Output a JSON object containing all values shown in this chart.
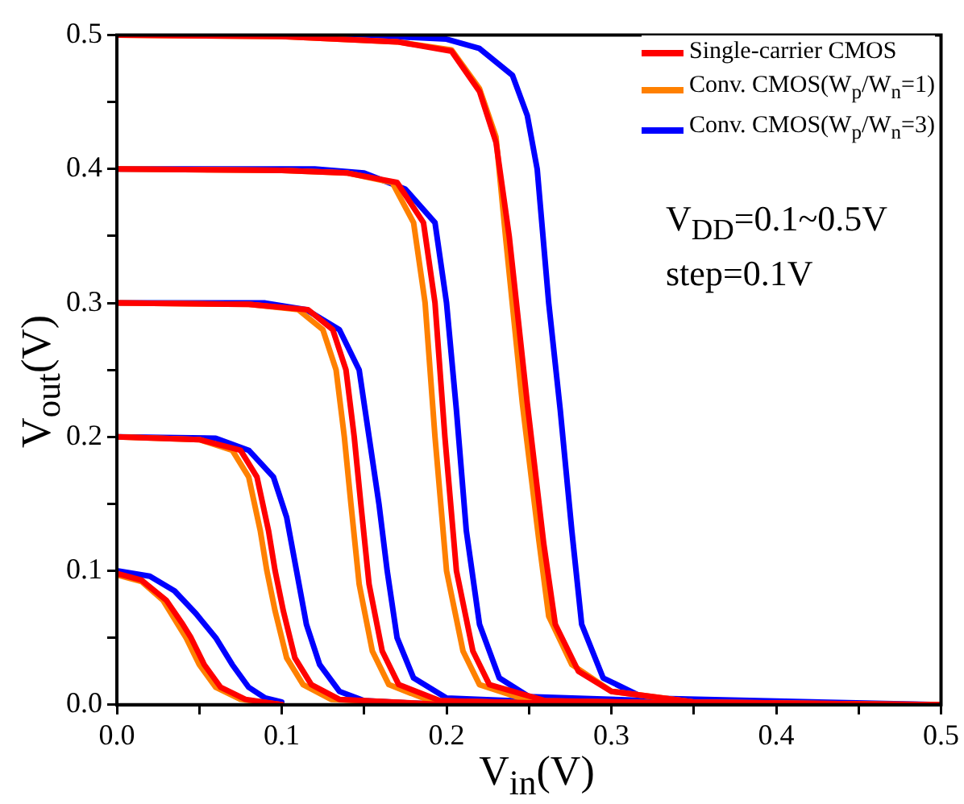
{
  "chart_data": {
    "type": "line",
    "xlabel": "V$_{in}$(V)",
    "ylabel": "V$_{out}$(V)",
    "xlim": [
      0,
      0.5
    ],
    "ylim": [
      0,
      0.5
    ],
    "xticks": [
      {
        "value": 0,
        "label": "0.0"
      },
      {
        "value": 0.05,
        "label": null
      },
      0.1,
      {
        "value": 0.15,
        "label": null
      },
      0.2,
      {
        "value": 0.25,
        "label": null
      },
      0.3,
      {
        "value": 0.35,
        "label": null
      },
      0.4,
      {
        "value": 0.45,
        "label": null
      },
      0.5
    ],
    "yticks": [
      {
        "value": 0,
        "label": "0.0"
      },
      {
        "value": 0.05,
        "label": null
      },
      0.1,
      {
        "value": 0.15,
        "label": null
      },
      0.2,
      {
        "value": 0.25,
        "label": null
      },
      0.3,
      {
        "value": 0.35,
        "label": null
      },
      0.4,
      {
        "value": 0.45,
        "label": null
      },
      0.5
    ],
    "legend": "top right",
    "grid": false,
    "marker": "none",
    "line_style": "solid",
    "annotations": [
      "V$_{DD}$=0.1~0.5V",
      "step=0.1V"
    ],
    "series": [
      {
        "name": "Single-carrier CMOS",
        "color": "#ff0000",
        "x": [
          0,
          0.1,
          0.17,
          0.203,
          0.22,
          0.23,
          0.238,
          0.249,
          0.259,
          0.266,
          0.28,
          0.3,
          0.35,
          0.5
        ],
        "values": [
          0.5,
          0.499,
          0.495,
          0.488,
          0.458,
          0.42,
          0.35,
          0.225,
          0.12,
          0.06,
          0.025,
          0.01,
          0.002,
          0
        ]
      },
      {
        "color": "#ff0000",
        "x": [
          0,
          0.1,
          0.14,
          0.17,
          0.186,
          0.193,
          0.199,
          0.206,
          0.216,
          0.226,
          0.26,
          0.4
        ],
        "values": [
          0.4,
          0.399,
          0.397,
          0.39,
          0.36,
          0.3,
          0.2,
          0.1,
          0.04,
          0.015,
          0.003,
          0
        ]
      },
      {
        "color": "#ff0000",
        "x": [
          0,
          0.08,
          0.116,
          0.131,
          0.139,
          0.144,
          0.148,
          0.153,
          0.161,
          0.171,
          0.196,
          0.3
        ],
        "values": [
          0.3,
          0.299,
          0.295,
          0.28,
          0.25,
          0.2,
          0.15,
          0.09,
          0.04,
          0.015,
          0.003,
          0
        ]
      },
      {
        "color": "#ff0000",
        "x": [
          0,
          0.05,
          0.075,
          0.085,
          0.092,
          0.096,
          0.101,
          0.108,
          0.118,
          0.135,
          0.2
        ],
        "values": [
          0.2,
          0.198,
          0.19,
          0.17,
          0.13,
          0.1,
          0.07,
          0.035,
          0.015,
          0.004,
          0
        ]
      },
      {
        "color": "#ff0000",
        "x": [
          0,
          0.015,
          0.03,
          0.04,
          0.045,
          0.053,
          0.063,
          0.078,
          0.1
        ],
        "values": [
          0.098,
          0.093,
          0.078,
          0.06,
          0.05,
          0.03,
          0.013,
          0.004,
          0
        ]
      },
      {
        "name": "Conv. CMOS(W$_{p}$/W$_{n}$=1)",
        "color": "#ff8000",
        "x": [
          0,
          0.1,
          0.17,
          0.203,
          0.22,
          0.23,
          0.236,
          0.246,
          0.256,
          0.262,
          0.276,
          0.3,
          0.35,
          0.5
        ],
        "values": [
          0.5,
          0.499,
          0.495,
          0.489,
          0.46,
          0.424,
          0.347,
          0.225,
          0.123,
          0.066,
          0.03,
          0.01,
          0.002,
          0
        ]
      },
      {
        "color": "#ff8000",
        "x": [
          0,
          0.1,
          0.14,
          0.167,
          0.18,
          0.187,
          0.193,
          0.2,
          0.21,
          0.22,
          0.25,
          0.4
        ],
        "values": [
          0.4,
          0.399,
          0.397,
          0.39,
          0.36,
          0.3,
          0.2,
          0.1,
          0.04,
          0.015,
          0.003,
          0
        ]
      },
      {
        "color": "#ff8000",
        "x": [
          0,
          0.08,
          0.11,
          0.125,
          0.133,
          0.138,
          0.142,
          0.147,
          0.155,
          0.165,
          0.19,
          0.3
        ],
        "values": [
          0.3,
          0.299,
          0.295,
          0.28,
          0.25,
          0.2,
          0.15,
          0.09,
          0.04,
          0.015,
          0.003,
          0
        ]
      },
      {
        "color": "#ff8000",
        "x": [
          0,
          0.05,
          0.07,
          0.08,
          0.087,
          0.091,
          0.096,
          0.103,
          0.113,
          0.13,
          0.2
        ],
        "values": [
          0.2,
          0.198,
          0.19,
          0.17,
          0.13,
          0.1,
          0.07,
          0.035,
          0.015,
          0.004,
          0
        ]
      },
      {
        "color": "#ff8000",
        "x": [
          0,
          0.015,
          0.028,
          0.037,
          0.042,
          0.05,
          0.06,
          0.075,
          0.1
        ],
        "values": [
          0.097,
          0.092,
          0.078,
          0.06,
          0.05,
          0.03,
          0.013,
          0.004,
          0
        ]
      },
      {
        "name": "Conv. CMOS(W$_{p}$/W$_{n}$=3)",
        "color": "#0000ff",
        "x": [
          0,
          0.15,
          0.2,
          0.22,
          0.24,
          0.249,
          0.255,
          0.262,
          0.269,
          0.276,
          0.282,
          0.295,
          0.32,
          0.5
        ],
        "values": [
          0.5,
          0.5,
          0.497,
          0.49,
          0.47,
          0.44,
          0.4,
          0.3,
          0.22,
          0.13,
          0.06,
          0.02,
          0.005,
          0
        ]
      },
      {
        "color": "#0000ff",
        "x": [
          0,
          0.12,
          0.15,
          0.175,
          0.193,
          0.2,
          0.206,
          0.212,
          0.22,
          0.232,
          0.25,
          0.4
        ],
        "values": [
          0.4,
          0.4,
          0.397,
          0.385,
          0.36,
          0.3,
          0.22,
          0.13,
          0.06,
          0.02,
          0.006,
          0
        ]
      },
      {
        "color": "#0000ff",
        "x": [
          0,
          0.09,
          0.115,
          0.135,
          0.147,
          0.153,
          0.159,
          0.164,
          0.17,
          0.18,
          0.2,
          0.3
        ],
        "values": [
          0.3,
          0.3,
          0.295,
          0.28,
          0.25,
          0.2,
          0.15,
          0.1,
          0.05,
          0.02,
          0.005,
          0
        ]
      },
      {
        "color": "#0000ff",
        "x": [
          0,
          0.06,
          0.08,
          0.095,
          0.103,
          0.109,
          0.115,
          0.123,
          0.135,
          0.15,
          0.2
        ],
        "values": [
          0.2,
          0.199,
          0.19,
          0.17,
          0.14,
          0.1,
          0.06,
          0.03,
          0.01,
          0.003,
          0
        ]
      },
      {
        "color": "#0000ff",
        "x": [
          0,
          0.02,
          0.035,
          0.048,
          0.06,
          0.07,
          0.08,
          0.09,
          0.1
        ],
        "values": [
          0.1,
          0.096,
          0.085,
          0.068,
          0.05,
          0.03,
          0.013,
          0.005,
          0.002
        ]
      }
    ]
  }
}
